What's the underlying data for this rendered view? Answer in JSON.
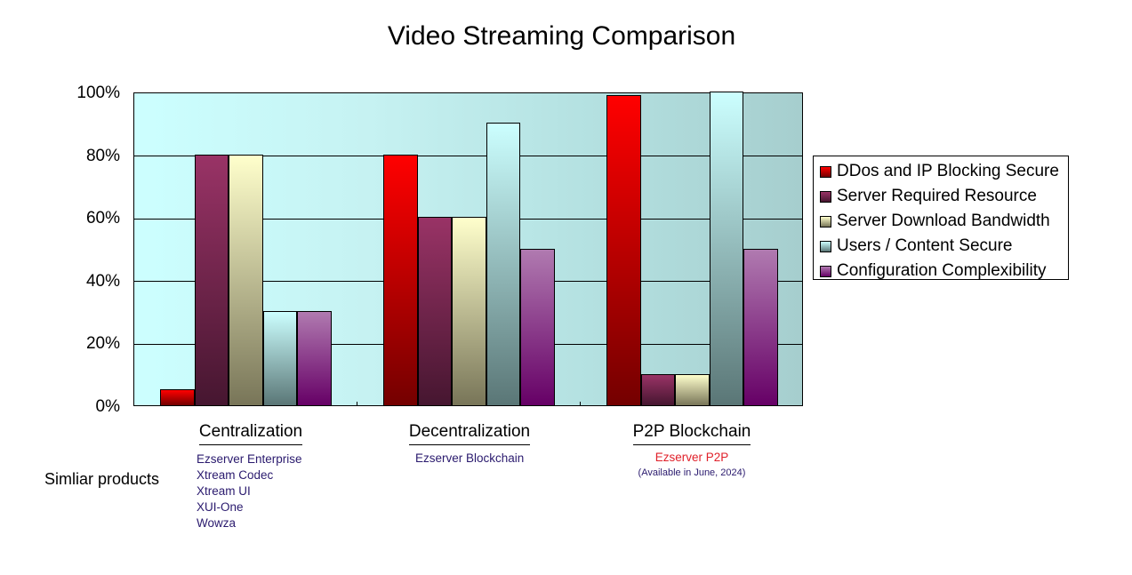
{
  "chart_data": {
    "type": "bar",
    "title": "Video Streaming Comparison",
    "xlabel": "",
    "ylabel": "",
    "ylim": [
      0,
      100
    ],
    "yticks": [
      "0%",
      "20%",
      "40%",
      "60%",
      "80%",
      "100%"
    ],
    "grid": true,
    "legend_position": "right",
    "categories": [
      "Centralization",
      "Decentralization",
      "P2P Blockchain"
    ],
    "series": [
      {
        "name": "DDos and IP Blocking Secure",
        "color": "#ff0000",
        "values": [
          5,
          80,
          99
        ]
      },
      {
        "name": "Server Required Resource",
        "color": "#993366",
        "values": [
          80,
          60,
          10
        ]
      },
      {
        "name": "Server Download Bandwidth",
        "color": "#ffffcc",
        "values": [
          80,
          60,
          10
        ]
      },
      {
        "name": "Users / Content Secure",
        "color": "#ccffff",
        "values": [
          30,
          90,
          100
        ]
      },
      {
        "name": "Configuration Complexibility",
        "color": "#b07ab0",
        "values": [
          30,
          50,
          50
        ]
      }
    ]
  },
  "similar_label": "Simliar products",
  "products": {
    "centralization": [
      "Ezserver Enterprise",
      "Xtream Codec",
      "Xtream UI",
      "XUI-One",
      "Wowza"
    ],
    "decentralization": [
      "Ezserver Blockchain"
    ],
    "p2p": {
      "name": "Ezserver P2P",
      "note": "(Available in June, 2024)",
      "color": "#e0202a"
    }
  }
}
